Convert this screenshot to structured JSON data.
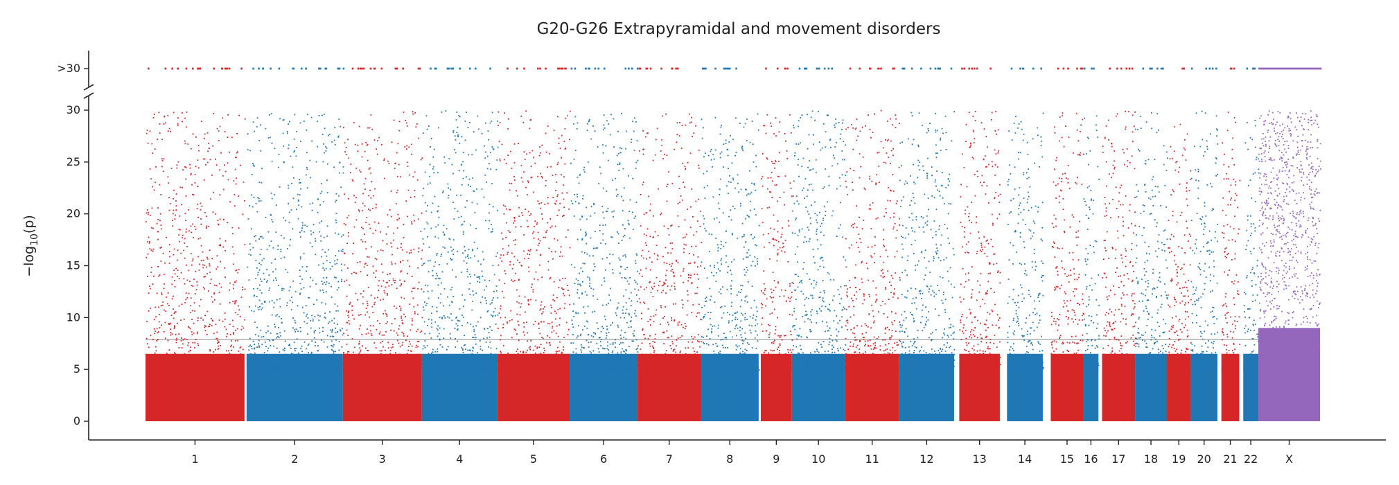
{
  "chart_data": {
    "type": "scatter",
    "title": "G20-G26 Extrapyramidal and movement disorders",
    "ylabel": {
      "base": "−log",
      "sub": "10",
      "rest": "(p)"
    },
    "xlabel": "",
    "ylim": [
      0,
      30
    ],
    "yticks": [
      "0",
      "5",
      "10",
      "15",
      "20",
      "25",
      "30"
    ],
    "capped_tick": ">30",
    "significance_threshold": 7.9,
    "colors": {
      "odd": "#d62728",
      "even": "#1f77b4",
      "X": "#9467bd",
      "threshold": "#888888",
      "axis": "#222222"
    },
    "series": [
      {
        "name": "1",
        "start": 0.0,
        "end": 248.9
      },
      {
        "name": "2",
        "start": 254.0,
        "end": 496.2
      },
      {
        "name": "3",
        "start": 496.2,
        "end": 694.5
      },
      {
        "name": "4",
        "start": 694.5,
        "end": 884.7
      },
      {
        "name": "5",
        "start": 884.7,
        "end": 1066.3
      },
      {
        "name": "6",
        "start": 1066.3,
        "end": 1237.1
      },
      {
        "name": "7",
        "start": 1237.1,
        "end": 1396.4
      },
      {
        "name": "8",
        "start": 1396.4,
        "end": 1541.6
      },
      {
        "name": "9",
        "start": 1547.0,
        "end": 1625.0
      },
      {
        "name": "10",
        "start": 1625.0,
        "end": 1759.0
      },
      {
        "name": "11",
        "start": 1759.0,
        "end": 1895.0
      },
      {
        "name": "12",
        "start": 1895.0,
        "end": 2033.0
      },
      {
        "name": "13",
        "start": 2046.0,
        "end": 2148.0
      },
      {
        "name": "14",
        "start": 2166.0,
        "end": 2256.0
      },
      {
        "name": "15",
        "start": 2276.0,
        "end": 2358.0
      },
      {
        "name": "16",
        "start": 2358.0,
        "end": 2396.0
      },
      {
        "name": "17",
        "start": 2405.0,
        "end": 2488.0
      },
      {
        "name": "18",
        "start": 2488.0,
        "end": 2568.0
      },
      {
        "name": "19",
        "start": 2568.0,
        "end": 2628.0
      },
      {
        "name": "20",
        "start": 2628.0,
        "end": 2695.0
      },
      {
        "name": "21",
        "start": 2705.0,
        "end": 2750.0
      },
      {
        "name": "22",
        "start": 2760.0,
        "end": 2798.0
      },
      {
        "name": "X",
        "start": 2798.0,
        "end": 2953.0
      }
    ]
  }
}
